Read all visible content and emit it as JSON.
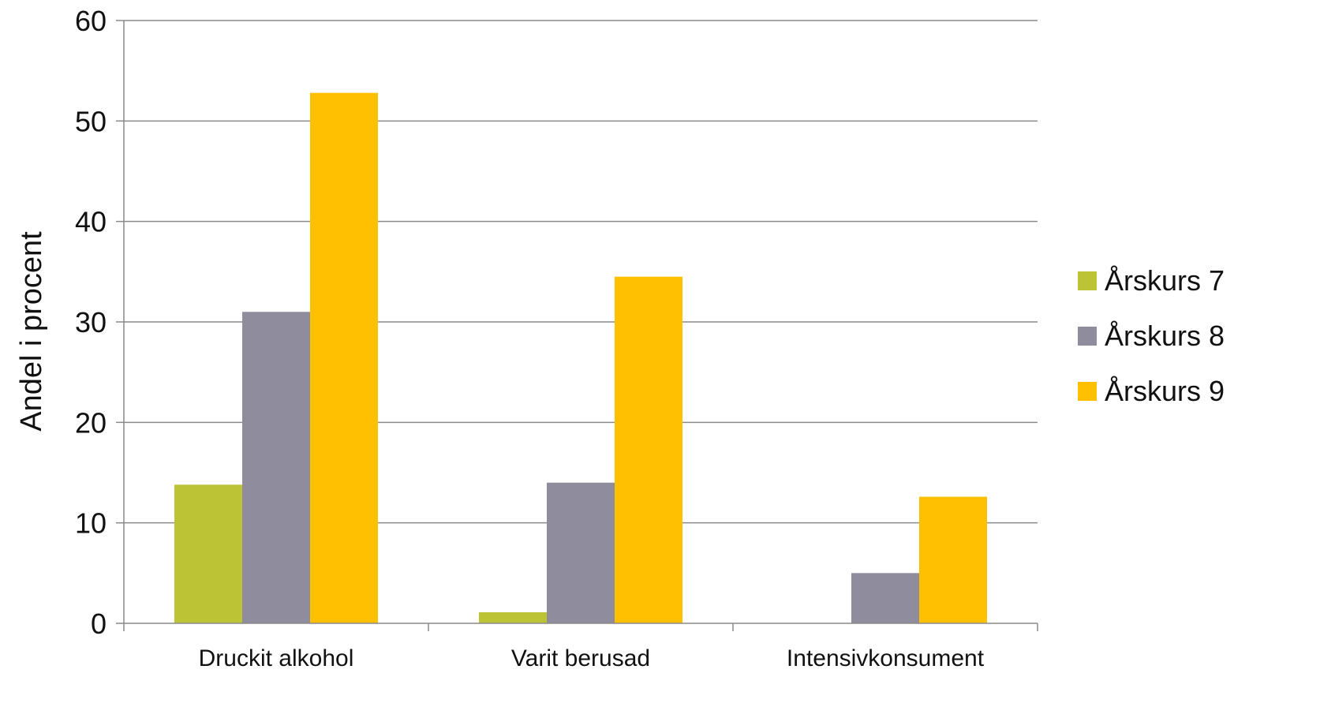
{
  "chart_data": {
    "type": "bar",
    "title": "",
    "xlabel": "",
    "ylabel": "Andel i procent",
    "ylim": [
      0,
      60
    ],
    "yticks": [
      0,
      10,
      20,
      30,
      40,
      50,
      60
    ],
    "grid": true,
    "legend_position": "right",
    "categories": [
      "Druckit alkohol",
      "Varit berusad",
      "Intensivkonsument"
    ],
    "series": [
      {
        "name": "Årskurs 7",
        "color": "#bcc436",
        "values": [
          13.8,
          1.1,
          0
        ]
      },
      {
        "name": "Årskurs 8",
        "color": "#8e8c9d",
        "values": [
          31.0,
          14.0,
          5.0
        ]
      },
      {
        "name": "Årskurs 9",
        "color": "#fec000",
        "values": [
          52.8,
          34.5,
          12.6
        ]
      }
    ]
  }
}
